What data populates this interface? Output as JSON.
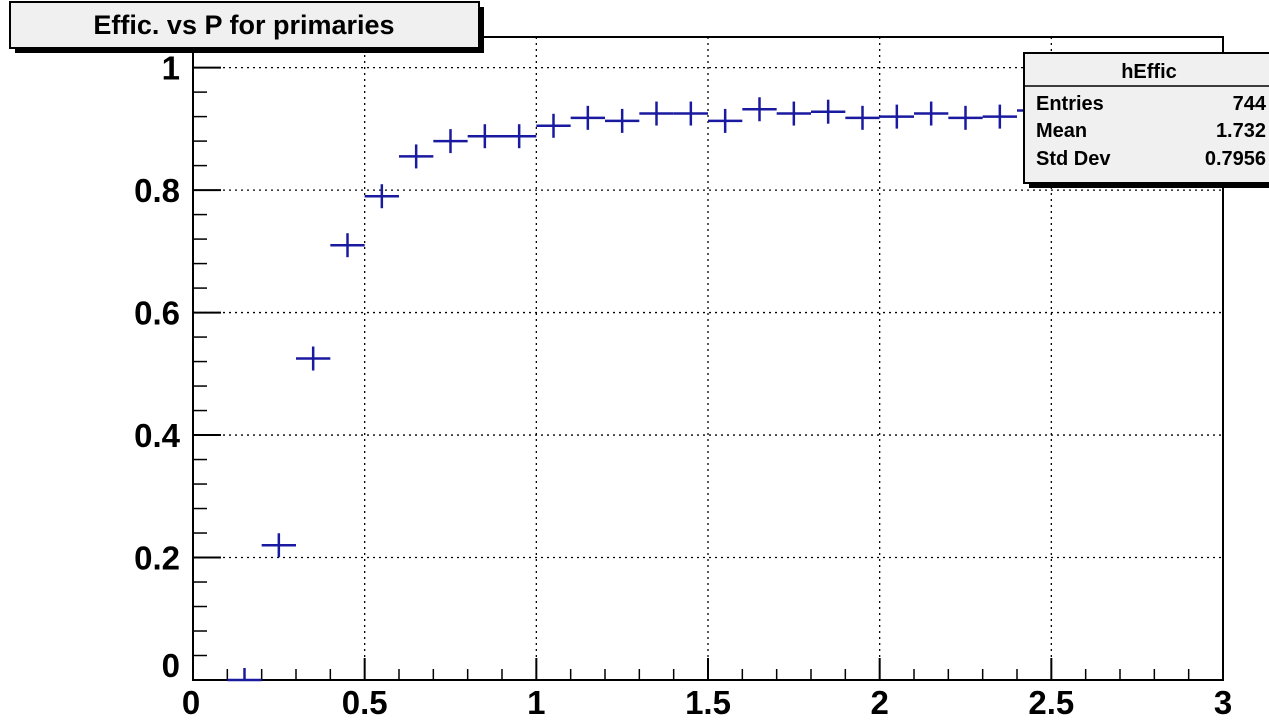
{
  "colors": {
    "marker": "#1a1aa0",
    "axis": "#000000",
    "grid": "#000000",
    "title_box_bg": "#f0f0f0",
    "stats_box_bg": "#f0f0f0",
    "background": "#ffffff"
  },
  "chart_data": {
    "type": "scatter",
    "title": "Effic. vs P for primaries",
    "xlabel": "",
    "ylabel": "",
    "xlim": [
      0,
      3
    ],
    "ylim": [
      0,
      1.05
    ],
    "grid": true,
    "x_tick_labels": [
      "0",
      "0.5",
      "1",
      "1.5",
      "2",
      "2.5",
      "3"
    ],
    "y_tick_labels": [
      "0",
      "0.2",
      "0.4",
      "0.6",
      "0.8",
      "1"
    ],
    "bin_width": 0.1,
    "points": [
      {
        "x": 0.15,
        "y": 0.0
      },
      {
        "x": 0.25,
        "y": 0.22
      },
      {
        "x": 0.35,
        "y": 0.525
      },
      {
        "x": 0.45,
        "y": 0.71
      },
      {
        "x": 0.55,
        "y": 0.79
      },
      {
        "x": 0.65,
        "y": 0.855
      },
      {
        "x": 0.75,
        "y": 0.88
      },
      {
        "x": 0.85,
        "y": 0.888
      },
      {
        "x": 0.95,
        "y": 0.888
      },
      {
        "x": 1.05,
        "y": 0.905
      },
      {
        "x": 1.15,
        "y": 0.918
      },
      {
        "x": 1.25,
        "y": 0.913
      },
      {
        "x": 1.35,
        "y": 0.925
      },
      {
        "x": 1.45,
        "y": 0.925
      },
      {
        "x": 1.55,
        "y": 0.913
      },
      {
        "x": 1.65,
        "y": 0.932
      },
      {
        "x": 1.75,
        "y": 0.925
      },
      {
        "x": 1.85,
        "y": 0.928
      },
      {
        "x": 1.95,
        "y": 0.918
      },
      {
        "x": 2.05,
        "y": 0.92
      },
      {
        "x": 2.15,
        "y": 0.925
      },
      {
        "x": 2.25,
        "y": 0.918
      },
      {
        "x": 2.35,
        "y": 0.92
      },
      {
        "x": 2.45,
        "y": 0.93
      }
    ],
    "stats": {
      "name": "hEffic",
      "rows": [
        {
          "label": "Entries",
          "value": "744"
        },
        {
          "label": "Mean",
          "value": "1.732"
        },
        {
          "label": "Std Dev",
          "value": "0.7956"
        }
      ]
    }
  }
}
